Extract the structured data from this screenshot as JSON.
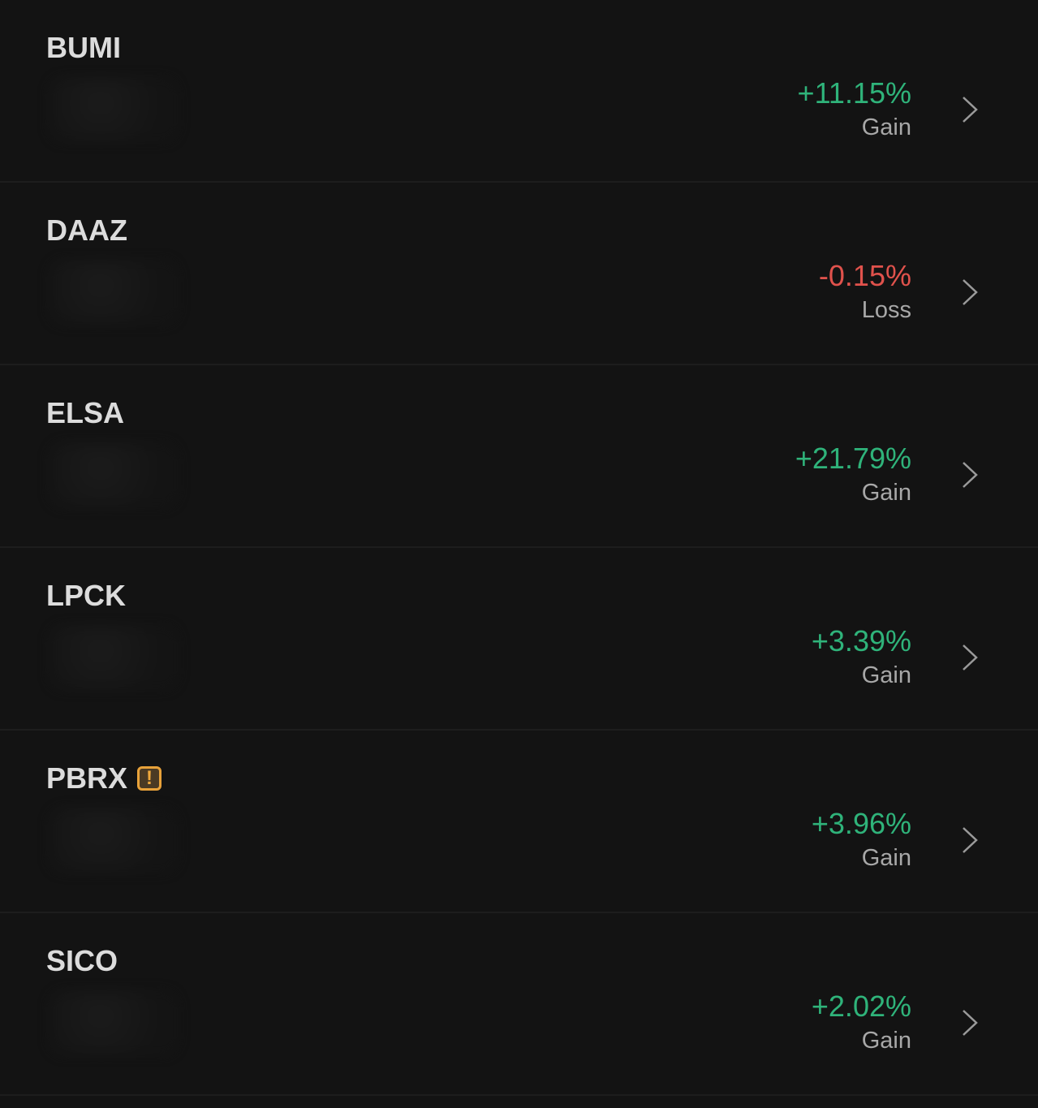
{
  "colors": {
    "gain": "#2fb37a",
    "loss": "#e0524c",
    "warning": "#e8a23a"
  },
  "rows": [
    {
      "ticker": "BUMI",
      "change": "+11.15%",
      "status": "Gain",
      "warning": false
    },
    {
      "ticker": "DAAZ",
      "change": "-0.15%",
      "status": "Loss",
      "warning": false
    },
    {
      "ticker": "ELSA",
      "change": "+21.79%",
      "status": "Gain",
      "warning": false
    },
    {
      "ticker": "LPCK",
      "change": "+3.39%",
      "status": "Gain",
      "warning": false
    },
    {
      "ticker": "PBRX",
      "change": "+3.96%",
      "status": "Gain",
      "warning": true,
      "warning_glyph": "!"
    },
    {
      "ticker": "SICO",
      "change": "+2.02%",
      "status": "Gain",
      "warning": false
    }
  ]
}
